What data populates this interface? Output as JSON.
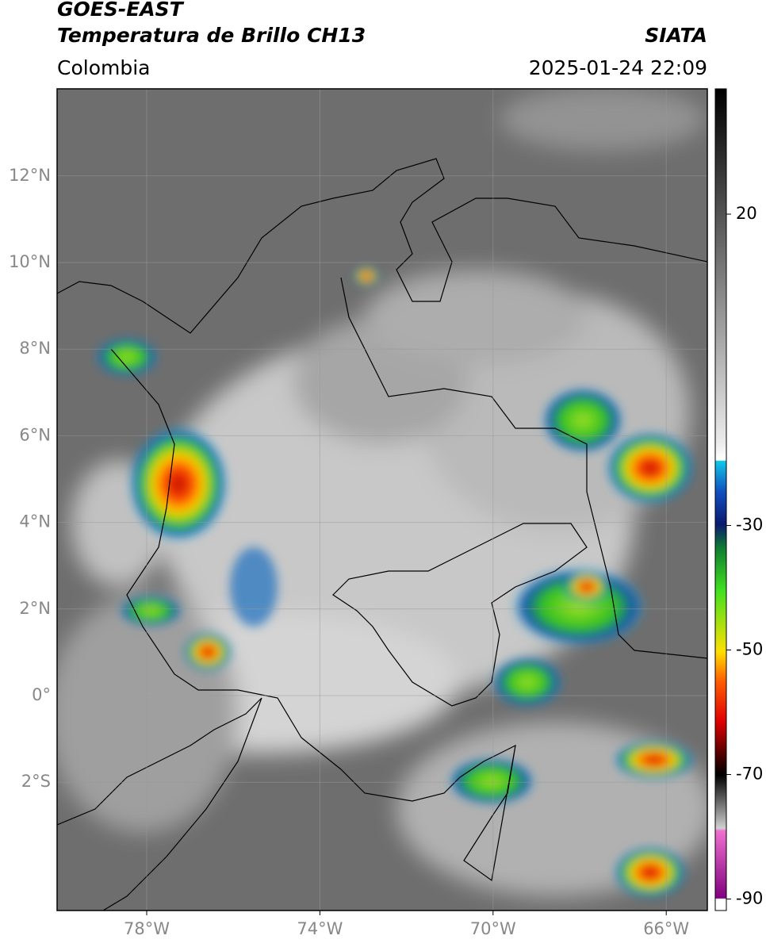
{
  "header": {
    "source": "GOES-EAST",
    "product": "Temperatura de Brillo CH13",
    "region": "Colombia",
    "agency": "SIATA",
    "timestamp": "2025-01-24 22:09"
  },
  "map": {
    "lat_ticks": [
      {
        "value": 12,
        "label": "12°N"
      },
      {
        "value": 10,
        "label": "10°N"
      },
      {
        "value": 8,
        "label": "8°N"
      },
      {
        "value": 6,
        "label": "6°N"
      },
      {
        "value": 4,
        "label": "4°N"
      },
      {
        "value": 2,
        "label": "2°N"
      },
      {
        "value": 0,
        "label": "0°"
      },
      {
        "value": -2,
        "label": "2°S"
      }
    ],
    "lon_ticks": [
      {
        "value": -78,
        "label": "78°W"
      },
      {
        "value": -74,
        "label": "74°W"
      },
      {
        "value": -70,
        "label": "70°W"
      },
      {
        "value": -66,
        "label": "66°W"
      }
    ]
  },
  "colorbar": {
    "ticks": [
      20,
      -30,
      -50,
      -70,
      -90
    ]
  }
}
